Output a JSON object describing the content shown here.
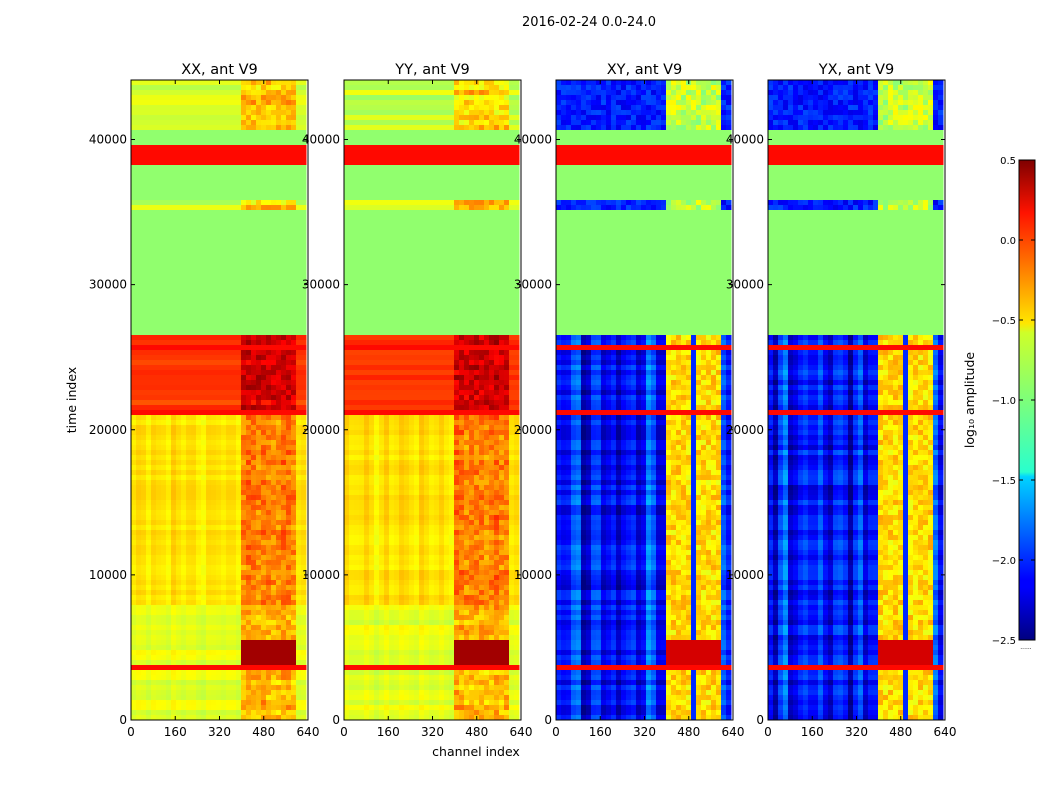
{
  "chart_data": {
    "type": "heatmap",
    "suptitle": "2016-02-24 0.0-24.0",
    "panels": [
      {
        "title": "XX, ant V9",
        "pol": "XX",
        "mode": "parallel"
      },
      {
        "title": "YY, ant V9",
        "pol": "YY",
        "mode": "parallel"
      },
      {
        "title": "XY, ant V9",
        "pol": "XY",
        "mode": "cross"
      },
      {
        "title": "YX, ant V9",
        "pol": "YX",
        "mode": "cross"
      }
    ],
    "xlabel": "channel index",
    "ylabel": "time index",
    "xlim": [
      0,
      640
    ],
    "ylim": [
      0,
      44100
    ],
    "xticks": [
      0,
      160,
      320,
      480,
      640
    ],
    "yticks": [
      0,
      10000,
      20000,
      30000,
      40000
    ],
    "colorbar": {
      "label": "log10 amplitude",
      "label_display": "log₁₀ amplitude",
      "colormap": "jet",
      "vmin": -2.5,
      "vmax": 0.5,
      "ticks": [
        "0.5",
        "0.0",
        "−0.5",
        "−1.0",
        "−1.5",
        "−2.0",
        "−2.5"
      ],
      "tick_values": [
        0.5,
        0.0,
        -0.5,
        -1.0,
        -1.5,
        -2.0,
        -2.5
      ],
      "offset_text": "......"
    },
    "flagged_time_bands": [
      {
        "t_start": 26400,
        "t_end": 35000,
        "value": -0.95
      },
      {
        "t_start": 36000,
        "t_end": 38200,
        "value": -0.95
      },
      {
        "t_start": 38200,
        "t_end": 39500,
        "value": 0.1
      },
      {
        "t_start": 39500,
        "t_end": 40700,
        "value": -0.95
      }
    ],
    "hot_time_bands": [
      {
        "t_start": 3300,
        "t_end": 3700,
        "value": 0.1
      },
      {
        "t_start": 21000,
        "t_end": 21200,
        "value": 0.1
      },
      {
        "t_start": 25500,
        "t_end": 25800,
        "value": 0.1
      }
    ],
    "hot_channel_range": [
      400,
      600
    ]
  }
}
